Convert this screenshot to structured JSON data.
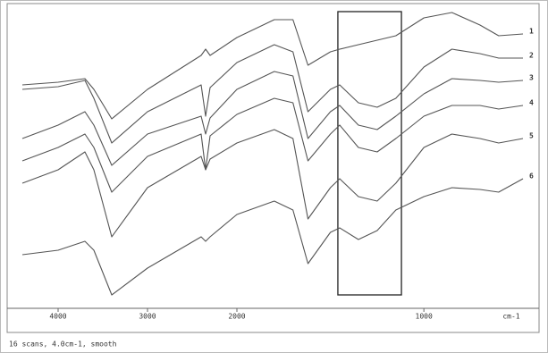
{
  "chart_data": {
    "type": "line",
    "x_label": "cm-1",
    "footnote": "16 scans, 4.0cm-1, smooth",
    "x": [
      4400,
      4000,
      3700,
      3600,
      3400,
      3000,
      2400,
      2350,
      2300,
      2000,
      1800,
      1700,
      1620,
      1500,
      1450,
      1350,
      1250,
      1150,
      1000,
      850,
      700,
      600,
      470
    ],
    "xlim": [
      4400,
      470
    ],
    "x_scale_break": 2000,
    "xticks": [
      4000,
      3000,
      2000,
      1000
    ],
    "ylim": [
      0,
      340
    ],
    "highlight": {
      "x": [
        1460,
        1120
      ],
      "y": [
        15,
        332
      ]
    },
    "series": [
      {
        "name": "1",
        "color": "#555555",
        "values": [
          250,
          253,
          257,
          245,
          212,
          245,
          283,
          290,
          283,
          303,
          323,
          323,
          272,
          287,
          290,
          295,
          300,
          305,
          325,
          331,
          317,
          305,
          307
        ]
      },
      {
        "name": "2",
        "color": "#555555",
        "values": [
          245,
          248,
          255,
          235,
          185,
          220,
          250,
          215,
          247,
          275,
          295,
          287,
          220,
          245,
          250,
          230,
          225,
          235,
          270,
          290,
          285,
          280,
          280
        ]
      },
      {
        "name": "3",
        "color": "#555555",
        "values": [
          190,
          205,
          220,
          205,
          160,
          195,
          215,
          195,
          213,
          245,
          265,
          260,
          190,
          220,
          227,
          205,
          200,
          215,
          240,
          257,
          255,
          253,
          255
        ]
      },
      {
        "name": "4",
        "color": "#555555",
        "values": [
          165,
          180,
          195,
          180,
          130,
          170,
          195,
          155,
          193,
          217,
          235,
          230,
          165,
          195,
          205,
          180,
          175,
          190,
          215,
          227,
          227,
          223,
          227
        ]
      },
      {
        "name": "5",
        "color": "#555555",
        "values": [
          140,
          155,
          175,
          155,
          80,
          135,
          170,
          155,
          167,
          185,
          200,
          190,
          100,
          135,
          145,
          125,
          120,
          140,
          180,
          195,
          190,
          185,
          190
        ]
      },
      {
        "name": "6",
        "color": "#555555",
        "values": [
          60,
          65,
          75,
          65,
          15,
          45,
          80,
          75,
          80,
          105,
          120,
          110,
          50,
          85,
          90,
          77,
          87,
          110,
          125,
          135,
          133,
          130,
          145
        ]
      }
    ]
  }
}
